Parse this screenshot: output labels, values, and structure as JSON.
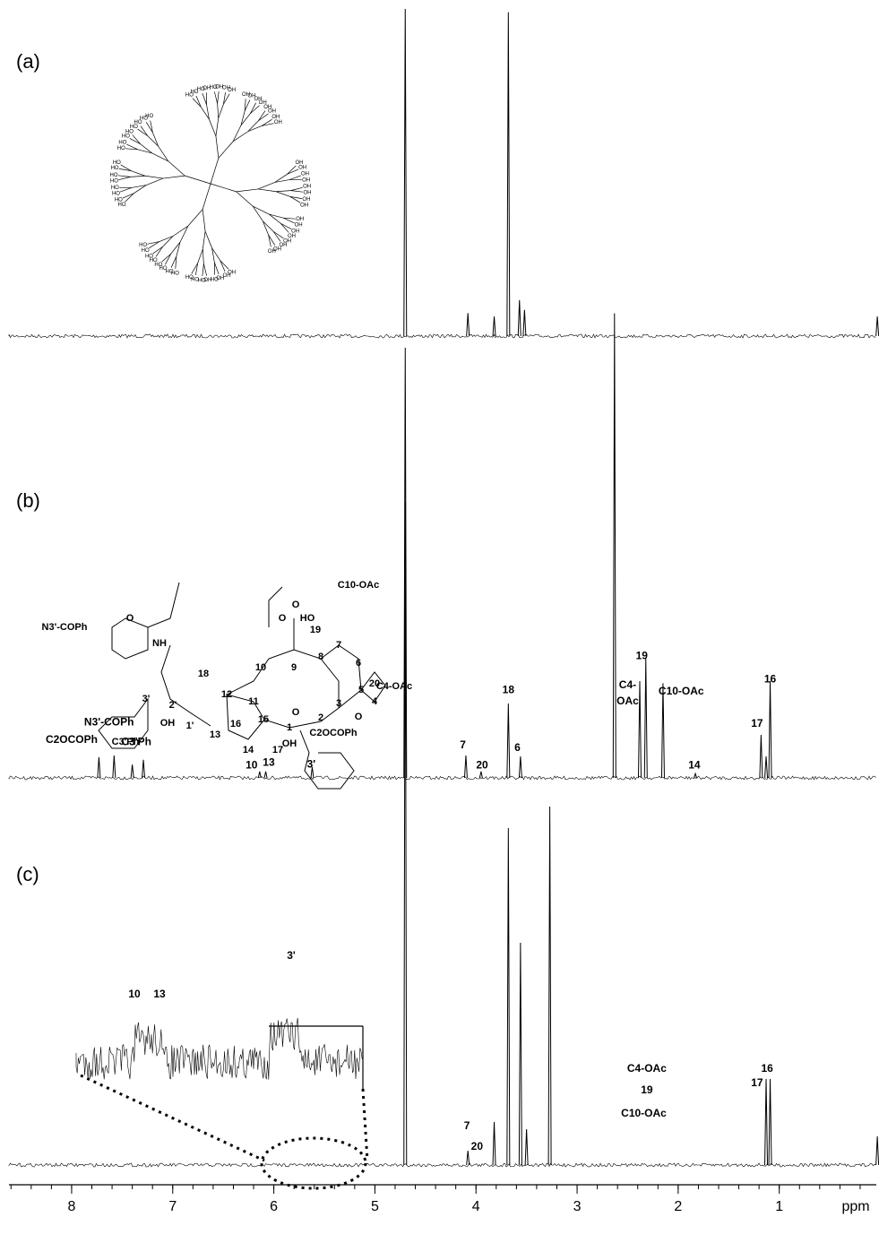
{
  "chart_data": {
    "type": "nmr",
    "x_label": "ppm",
    "xlim": [
      8.62,
      0.04
    ],
    "xticks": [
      8,
      7,
      6,
      5,
      4,
      3,
      2,
      1
    ],
    "color": "#000000",
    "panels": [
      {
        "label": "(a)",
        "ylim": [
          0,
          100
        ],
        "x": [
          4.7,
          4.08,
          3.82,
          3.68,
          3.57,
          3.52,
          0.03
        ],
        "values": [
          100,
          7,
          6,
          99,
          11,
          8,
          6
        ],
        "structure_labels": [
          "OH",
          "HO"
        ],
        "annotations": []
      },
      {
        "label": "(b)",
        "ylim": [
          0,
          100
        ],
        "x": [
          7.73,
          7.58,
          7.4,
          7.29,
          6.14,
          6.08,
          5.62,
          4.7,
          4.1,
          3.95,
          3.68,
          3.56,
          2.63,
          2.38,
          2.32,
          2.15,
          1.83,
          1.18,
          1.13,
          1.09
        ],
        "values": [
          4.8,
          5.2,
          3.1,
          4.2,
          1.5,
          1.5,
          2.5,
          100,
          5.2,
          1.5,
          17.3,
          5,
          108,
          22.5,
          27.7,
          22,
          1,
          10,
          5,
          22.5
        ],
        "structure_labels": [
          "C10-OAc",
          "N3'-COPh",
          "NH",
          "O",
          "O",
          "O",
          "HO",
          "19",
          "7",
          "10",
          "9",
          "8",
          "6",
          "5",
          "4",
          "3",
          "18",
          "12",
          "11",
          "16",
          "15",
          "1",
          "2",
          "13",
          "14",
          "17",
          "1'",
          "2'",
          "3'",
          "OH",
          "OH",
          "C3'Ph",
          "20",
          "C4-OAc",
          "C2OCOPh",
          "O",
          "O"
        ],
        "annotations": [
          {
            "text": "C2OCOPh",
            "x": 8.0,
            "y": 8.75
          },
          {
            "text": "N3'-COPh",
            "x": 7.63,
            "y": 12.9
          },
          {
            "text": "C3'Ph",
            "x": 7.36,
            "y": 8.3
          },
          {
            "text": "10",
            "x": 6.22,
            "y": 2.9
          },
          {
            "text": "13",
            "x": 6.05,
            "y": 3.5
          },
          {
            "text": "3'",
            "x": 5.63,
            "y": 3.1
          },
          {
            "text": "7",
            "x": 4.13,
            "y": 7.5
          },
          {
            "text": "20",
            "x": 3.94,
            "y": 2.9
          },
          {
            "text": "18",
            "x": 3.68,
            "y": 20.4
          },
          {
            "text": "6",
            "x": 3.59,
            "y": 6.9
          },
          {
            "text": "C4-",
            "x": 2.5,
            "y": 21.5
          },
          {
            "text": "OAc",
            "x": 2.5,
            "y": 17.7
          },
          {
            "text": "19",
            "x": 2.36,
            "y": 28.3
          },
          {
            "text": "C10-OAc",
            "x": 1.97,
            "y": 20
          },
          {
            "text": "14",
            "x": 1.84,
            "y": 2.9
          },
          {
            "text": "17",
            "x": 1.22,
            "y": 12.5
          },
          {
            "text": "16",
            "x": 1.09,
            "y": 22.9
          }
        ]
      },
      {
        "label": "(c)",
        "ylim": [
          0,
          100
        ],
        "x": [
          4.7,
          4.08,
          3.82,
          3.68,
          3.56,
          3.5,
          3.27,
          1.13,
          1.09,
          0.03
        ],
        "values": [
          185,
          4,
          12,
          94,
          62,
          10,
          100,
          24,
          24,
          8
        ],
        "inset_labels": [
          "10",
          "13",
          "3'"
        ],
        "annotations": [
          {
            "text": "7",
            "x": 4.09,
            "y": 10.75
          },
          {
            "text": "20",
            "x": 3.99,
            "y": 5
          },
          {
            "text": "C4-OAc",
            "x": 2.31,
            "y": 26.75
          },
          {
            "text": "19",
            "x": 2.31,
            "y": 20.75
          },
          {
            "text": "C10-OAc",
            "x": 2.34,
            "y": 14.25
          },
          {
            "text": "17",
            "x": 1.22,
            "y": 22.75
          },
          {
            "text": "16",
            "x": 1.12,
            "y": 26.75
          }
        ]
      }
    ]
  }
}
